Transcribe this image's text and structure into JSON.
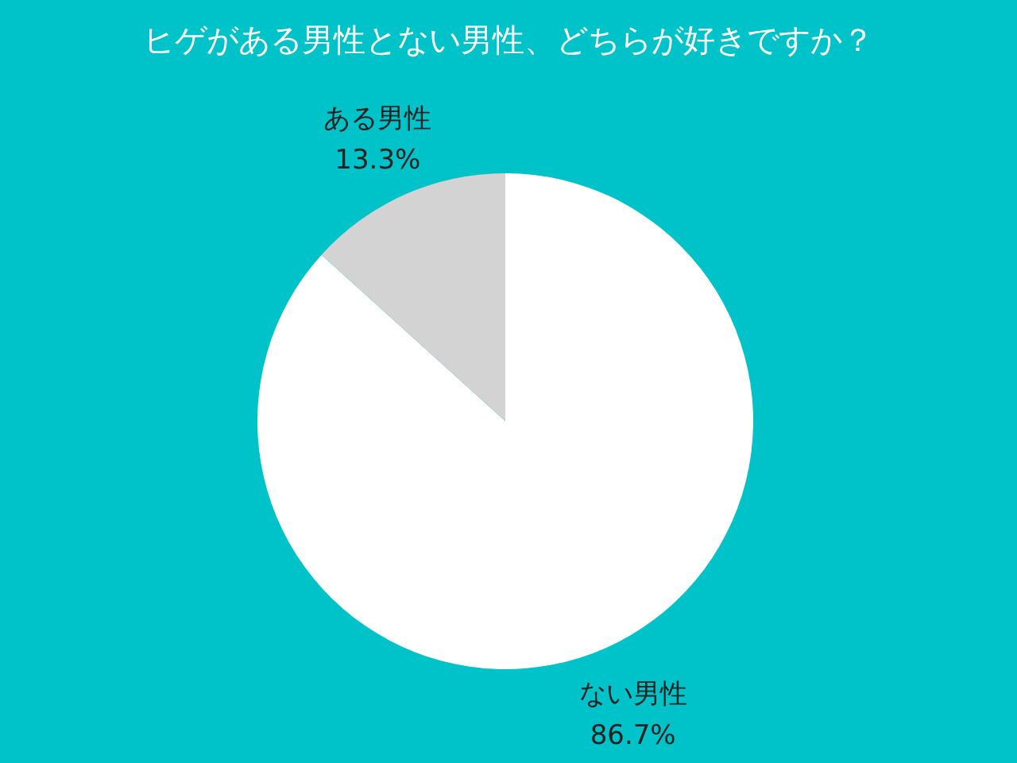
{
  "chart_data": {
    "type": "pie",
    "title": "ヒゲがある男性とない男性、どちらが好きですか？",
    "categories": [
      "ない男性",
      "ある男性"
    ],
    "values": [
      86.7,
      13.3
    ],
    "colors": [
      "#ffffff",
      "#d3d3d3"
    ],
    "value_labels": [
      "86.7%",
      "13.3%"
    ],
    "legend": false
  }
}
